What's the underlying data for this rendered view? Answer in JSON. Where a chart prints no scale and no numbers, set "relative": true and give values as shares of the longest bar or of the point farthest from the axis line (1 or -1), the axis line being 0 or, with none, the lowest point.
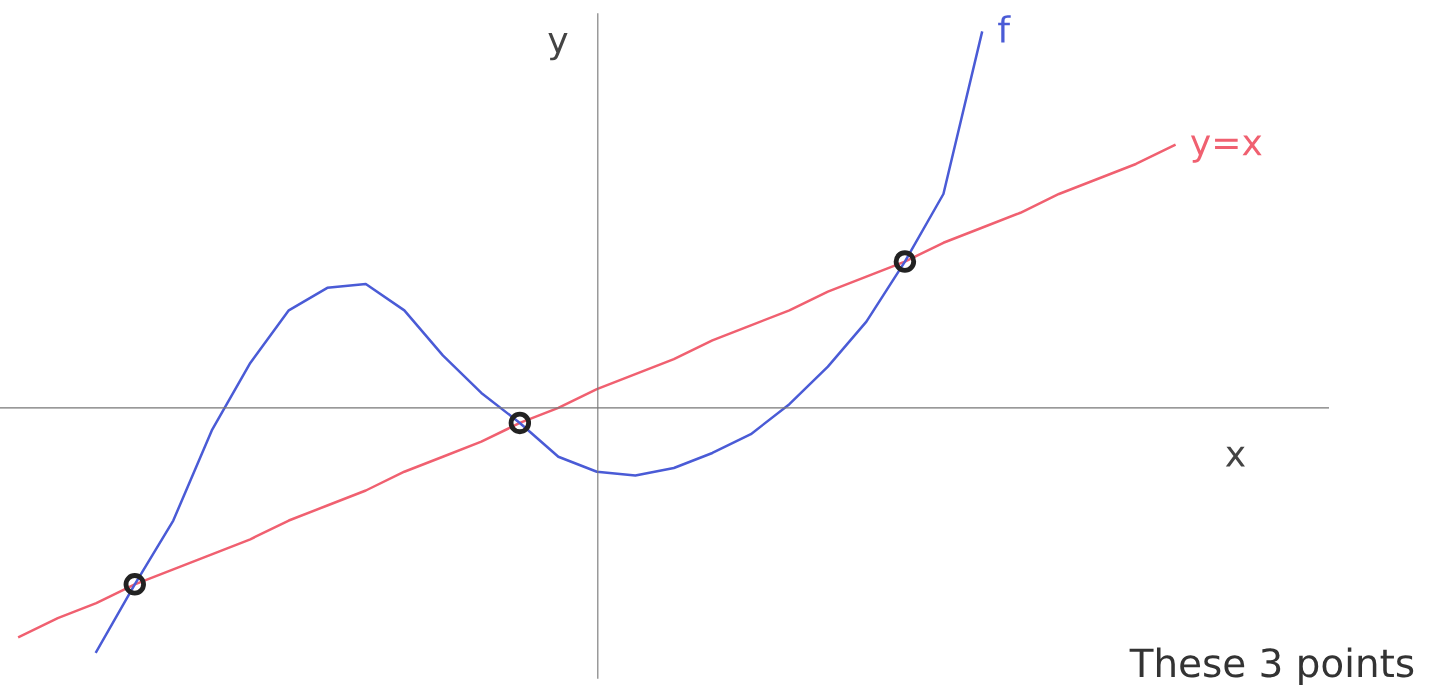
{
  "chart_data": {
    "type": "line",
    "relative": true,
    "xlabel": "x",
    "ylabel": "y",
    "categories": [
      null,
      null,
      null,
      null,
      null,
      null,
      null,
      null,
      null,
      null,
      null,
      null,
      null,
      null,
      null,
      null,
      null,
      null,
      null,
      null,
      null,
      null,
      null,
      null,
      null,
      null,
      null,
      null,
      null,
      null,
      null
    ],
    "series": [
      {
        "name": "y=x",
        "color": "#f06070",
        "values": [
          -0.61,
          -0.56,
          -0.52,
          -0.47,
          -0.43,
          -0.39,
          -0.35,
          -0.3,
          -0.26,
          -0.22,
          -0.17,
          -0.13,
          -0.09,
          -0.04,
          0.0,
          0.05,
          0.09,
          0.13,
          0.18,
          0.22,
          0.26,
          0.31,
          0.35,
          0.39,
          0.44,
          0.48,
          0.52,
          0.57,
          0.61,
          0.65,
          0.7
        ]
      },
      {
        "name": "f",
        "color": "#4a5bd6",
        "values": [
          null,
          null,
          -0.65,
          -0.47,
          -0.3,
          -0.06,
          0.12,
          0.26,
          0.32,
          0.33,
          0.26,
          0.14,
          0.04,
          -0.04,
          -0.13,
          -0.17,
          -0.18,
          -0.16,
          -0.12,
          -0.07,
          0.01,
          0.11,
          0.23,
          0.39,
          0.57,
          1.0,
          null,
          null,
          null,
          null,
          null
        ]
      }
    ],
    "annotations": [
      "These 3 points"
    ]
  }
}
